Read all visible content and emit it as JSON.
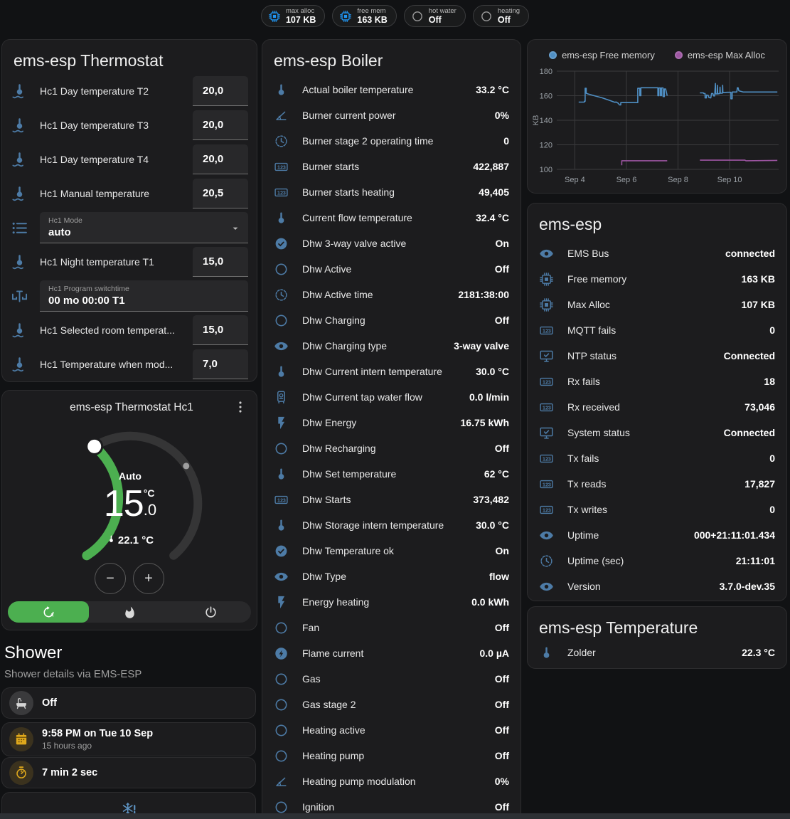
{
  "colors": {
    "accent_green": "#4caf50",
    "icon_blue": "#4d7ba6",
    "bright_blue": "#2196f3",
    "amber": "#dfa81c",
    "chart_blue": "#4f8fc4",
    "chart_purple": "#9d55a2"
  },
  "header": {
    "chips": [
      {
        "icon": "chip",
        "icon_color": "#2196f3",
        "label": "max alloc",
        "value": "107 KB"
      },
      {
        "icon": "chip",
        "icon_color": "#2196f3",
        "label": "free mem",
        "value": "163 KB"
      },
      {
        "icon": "circle",
        "icon_color": "#9e9e9e",
        "label": "hot water",
        "value": "Off"
      },
      {
        "icon": "circle",
        "icon_color": "#9e9e9e",
        "label": "heating",
        "value": "Off"
      }
    ]
  },
  "thermostat_panel": {
    "title": "ems-esp Thermostat",
    "rows": [
      {
        "type": "number",
        "icon": "thermo-water",
        "label": "Hc1 Day temperature T2",
        "value": "20,0"
      },
      {
        "type": "number",
        "icon": "thermo-water",
        "label": "Hc1 Day temperature T3",
        "value": "20,0"
      },
      {
        "type": "number",
        "icon": "thermo-water",
        "label": "Hc1 Day temperature T4",
        "value": "20,0"
      },
      {
        "type": "number",
        "icon": "thermo-water",
        "label": "Hc1 Manual temperature",
        "value": "20,5"
      },
      {
        "type": "select",
        "icon": "list",
        "label": "Hc1 Mode",
        "value": "auto"
      },
      {
        "type": "number",
        "icon": "thermo-water",
        "label": "Hc1 Night temperature T1",
        "value": "15,0"
      },
      {
        "type": "text",
        "icon": "valve",
        "label": "Hc1 Program switchtime",
        "value": "00 mo 00:00 T1"
      },
      {
        "type": "number",
        "icon": "thermo-water",
        "label": "Hc1 Selected room temperat...",
        "value": "15,0"
      },
      {
        "type": "number",
        "icon": "thermo-water",
        "label": "Hc1 Temperature when mod...",
        "value": "7,0"
      }
    ]
  },
  "dial_card": {
    "title": "ems-esp Thermostat Hc1",
    "mode_label": "Auto",
    "target_int": "15",
    "target_frac": ".0",
    "target_unit": "°C",
    "current": "22.1 °C",
    "modes": [
      {
        "name": "auto",
        "icon": "thermostat-auto",
        "active": true
      },
      {
        "name": "heat",
        "icon": "flame",
        "active": false
      },
      {
        "name": "off",
        "icon": "power",
        "active": false
      }
    ]
  },
  "shower": {
    "title": "Shower",
    "subtitle": "Shower details via EMS-ESP",
    "cards": [
      {
        "icon": "bathtub",
        "icon_style": "gray",
        "title": "Off"
      },
      {
        "icon": "calendar",
        "icon_style": "amber",
        "title": "9:58 PM on Tue 10 Sep",
        "subtitle": "15 hours ago"
      },
      {
        "icon": "timer",
        "icon_style": "amber",
        "title": "7 min 2 sec"
      },
      {
        "icon": "snowflake-alert",
        "icon_style": "centered"
      }
    ]
  },
  "boiler_panel": {
    "title": "ems-esp Boiler",
    "rows": [
      {
        "icon": "thermometer",
        "label": "Actual boiler temperature",
        "value": "33.2 °C"
      },
      {
        "icon": "angle",
        "label": "Burner current power",
        "value": "0%"
      },
      {
        "icon": "clock",
        "label": "Burner stage 2 operating time",
        "value": "0"
      },
      {
        "icon": "counter",
        "label": "Burner starts",
        "value": "422,887"
      },
      {
        "icon": "counter",
        "label": "Burner starts heating",
        "value": "49,405"
      },
      {
        "icon": "thermometer",
        "label": "Current flow temperature",
        "value": "32.4 °C"
      },
      {
        "icon": "check-circle",
        "label": "Dhw 3-way valve active",
        "value": "On"
      },
      {
        "icon": "circle",
        "label": "Dhw Active",
        "value": "Off"
      },
      {
        "icon": "clock",
        "label": "Dhw Active time",
        "value": "2181:38:00"
      },
      {
        "icon": "circle",
        "label": "Dhw Charging",
        "value": "Off"
      },
      {
        "icon": "eye",
        "label": "Dhw Charging type",
        "value": "3-way valve"
      },
      {
        "icon": "thermometer",
        "label": "Dhw Current intern temperature",
        "value": "30.0 °C"
      },
      {
        "icon": "water-boiler",
        "label": "Dhw Current tap water flow",
        "value": "0.0 l/min"
      },
      {
        "icon": "flash",
        "label": "Dhw Energy",
        "value": "16.75 kWh"
      },
      {
        "icon": "circle",
        "label": "Dhw Recharging",
        "value": "Off"
      },
      {
        "icon": "thermometer",
        "label": "Dhw Set temperature",
        "value": "62 °C"
      },
      {
        "icon": "counter",
        "label": "Dhw Starts",
        "value": "373,482"
      },
      {
        "icon": "thermometer",
        "label": "Dhw Storage intern temperature",
        "value": "30.0 °C"
      },
      {
        "icon": "check-circle",
        "label": "Dhw Temperature ok",
        "value": "On"
      },
      {
        "icon": "eye",
        "label": "Dhw Type",
        "value": "flow"
      },
      {
        "icon": "flash",
        "label": "Energy heating",
        "value": "0.0 kWh"
      },
      {
        "icon": "circle",
        "label": "Fan",
        "value": "Off"
      },
      {
        "icon": "flash-circle",
        "label": "Flame current",
        "value": "0.0 µA"
      },
      {
        "icon": "circle",
        "label": "Gas",
        "value": "Off"
      },
      {
        "icon": "circle",
        "label": "Gas stage 2",
        "value": "Off"
      },
      {
        "icon": "circle",
        "label": "Heating active",
        "value": "Off"
      },
      {
        "icon": "circle",
        "label": "Heating pump",
        "value": "Off"
      },
      {
        "icon": "angle",
        "label": "Heating pump modulation",
        "value": "0%"
      },
      {
        "icon": "circle",
        "label": "Ignition",
        "value": "Off"
      }
    ]
  },
  "emsesp_panel": {
    "title": "ems-esp",
    "rows": [
      {
        "icon": "eye",
        "label": "EMS Bus",
        "value": "connected"
      },
      {
        "icon": "chip",
        "label": "Free memory",
        "value": "163 KB"
      },
      {
        "icon": "chip",
        "label": "Max Alloc",
        "value": "107 KB"
      },
      {
        "icon": "counter",
        "label": "MQTT fails",
        "value": "0"
      },
      {
        "icon": "monitor-check",
        "label": "NTP status",
        "value": "Connected"
      },
      {
        "icon": "counter",
        "label": "Rx fails",
        "value": "18"
      },
      {
        "icon": "counter",
        "label": "Rx received",
        "value": "73,046"
      },
      {
        "icon": "monitor-check",
        "label": "System status",
        "value": "Connected"
      },
      {
        "icon": "counter",
        "label": "Tx fails",
        "value": "0"
      },
      {
        "icon": "counter",
        "label": "Tx reads",
        "value": "17,827"
      },
      {
        "icon": "counter",
        "label": "Tx writes",
        "value": "0"
      },
      {
        "icon": "eye",
        "label": "Uptime",
        "value": "000+21:11:01.434"
      },
      {
        "icon": "clock",
        "label": "Uptime (sec)",
        "value": "21:11:01"
      },
      {
        "icon": "eye",
        "label": "Version",
        "value": "3.7.0-dev.35"
      }
    ]
  },
  "temperature_panel": {
    "title": "ems-esp Temperature",
    "rows": [
      {
        "icon": "thermometer",
        "label": "Zolder",
        "value": "22.3 °C"
      }
    ]
  },
  "chart_data": {
    "type": "line",
    "ylabel": "KB",
    "ylim": [
      100,
      180
    ],
    "yticks": [
      100,
      120,
      140,
      160,
      180
    ],
    "xlim": [
      3.3,
      11.9
    ],
    "xticks": [
      {
        "v": 4,
        "label": "Sep 4"
      },
      {
        "v": 6,
        "label": "Sep 6"
      },
      {
        "v": 8,
        "label": "Sep 8"
      },
      {
        "v": 10,
        "label": "Sep 10"
      }
    ],
    "legend_position": "top",
    "grid": true,
    "series": [
      {
        "name": "ems-esp Free memory",
        "color": "#4f8fc4",
        "segments": [
          [
            [
              4.15,
              154.8
            ],
            [
              4.37,
              154.8
            ],
            [
              4.37,
              155.5
            ],
            [
              4.4,
              155.5
            ],
            [
              4.4,
              166
            ],
            [
              4.44,
              166
            ],
            [
              4.44,
              162
            ],
            [
              4.5,
              161.5
            ],
            [
              4.75,
              160
            ],
            [
              5.05,
              158.3
            ],
            [
              5.35,
              156.2
            ],
            [
              5.5,
              155
            ],
            [
              5.55,
              154.6
            ],
            [
              5.6,
              154.9
            ],
            [
              5.68,
              153.9
            ],
            [
              5.73,
              152.5
            ],
            [
              5.78,
              152.5
            ],
            [
              5.78,
              154.4
            ],
            [
              6.44,
              154.4
            ],
            [
              6.44,
              166
            ],
            [
              6.52,
              166
            ],
            [
              6.52,
              160
            ],
            [
              6.56,
              160
            ],
            [
              6.56,
              166.5
            ],
            [
              7.22,
              166.5
            ],
            [
              7.22,
              160
            ],
            [
              7.26,
              160
            ],
            [
              7.26,
              166.3
            ],
            [
              7.32,
              166.3
            ],
            [
              7.32,
              160
            ],
            [
              7.36,
              160
            ],
            [
              7.36,
              166.3
            ],
            [
              7.42,
              166.3
            ],
            [
              7.42,
              159.3
            ],
            [
              7.47,
              159.3
            ],
            [
              7.47,
              165.5
            ],
            [
              7.52,
              165.5
            ],
            [
              7.58,
              160
            ]
          ],
          [
            [
              8.85,
              162.3
            ],
            [
              8.98,
              162.3
            ],
            [
              9.0,
              161.8
            ],
            [
              9.05,
              161.8
            ],
            [
              9.05,
              158.2
            ],
            [
              9.1,
              158.2
            ],
            [
              9.1,
              160.5
            ],
            [
              9.17,
              160.3
            ],
            [
              9.2,
              158.5
            ],
            [
              9.27,
              158.2
            ],
            [
              9.3,
              161.8
            ],
            [
              9.35,
              161.8
            ],
            [
              9.38,
              159.8
            ],
            [
              9.42,
              159.8
            ],
            [
              9.45,
              170
            ],
            [
              9.46,
              161.5
            ],
            [
              9.52,
              161.5
            ],
            [
              9.53,
              168.5
            ],
            [
              9.54,
              161.5
            ],
            [
              9.62,
              161.8
            ],
            [
              9.63,
              167
            ],
            [
              9.64,
              162
            ],
            [
              9.72,
              162
            ],
            [
              9.73,
              168.5
            ],
            [
              9.74,
              162.5
            ],
            [
              9.9,
              162.8
            ],
            [
              10.05,
              162.8
            ],
            [
              10.05,
              157.5
            ],
            [
              10.1,
              157.5
            ],
            [
              10.1,
              163
            ],
            [
              10.28,
              163
            ],
            [
              10.3,
              166.5
            ],
            [
              10.33,
              166.5
            ],
            [
              10.36,
              164
            ],
            [
              10.45,
              163.5
            ],
            [
              10.52,
              163
            ],
            [
              11.85,
              163
            ]
          ]
        ]
      },
      {
        "name": "ems-esp Max Alloc",
        "color": "#9d55a2",
        "segments": [
          [
            [
              5.82,
              103.3
            ],
            [
              5.82,
              107
            ],
            [
              7.58,
              107
            ]
          ],
          [
            [
              8.85,
              107.5
            ],
            [
              10.6,
              107.5
            ],
            [
              10.63,
              107
            ],
            [
              11.85,
              107.3
            ]
          ]
        ]
      }
    ]
  }
}
